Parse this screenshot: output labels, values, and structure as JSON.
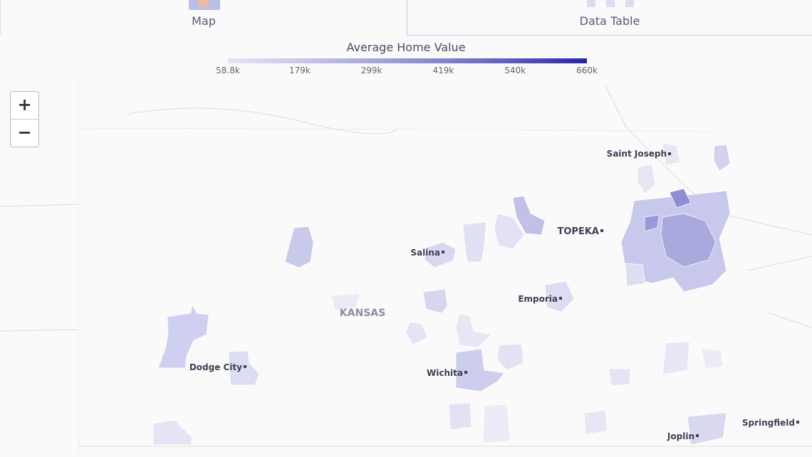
{
  "tabs": [
    "Map",
    "Data Table"
  ],
  "legend": {
    "title": "Average Home Value",
    "ticks": [
      "58.8k",
      "179k",
      "299k",
      "419k",
      "540k",
      "660k"
    ]
  },
  "zoom": {
    "in": "+",
    "out": "−"
  },
  "labels": {
    "state": "KANSAS",
    "cities": [
      "Saint Joseph",
      "TOPEKA",
      "Salina",
      "Emporia",
      "Dodge City",
      "Wichita",
      "Joplin",
      "Springfield"
    ]
  }
}
